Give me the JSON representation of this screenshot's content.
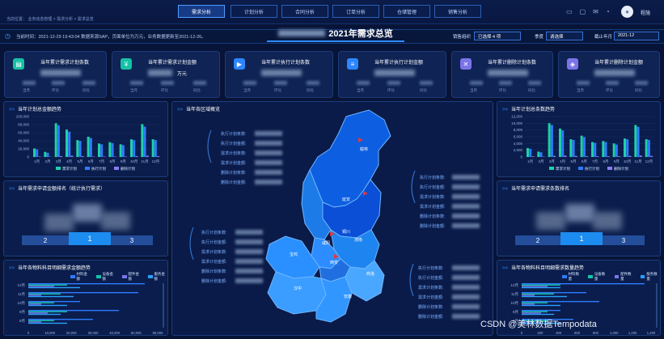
{
  "nav": {
    "tabs": [
      "需求分析",
      "计划分析",
      "合同分析",
      "订单分析",
      "仓储管理",
      "销售分析"
    ],
    "active": 0
  },
  "breadcrumb": "当前位置： 业务动态管理  >  需求分析  >  需求总览",
  "user": {
    "name": "程施"
  },
  "info": {
    "text": "当前时间：2021-12-29 19:43:04  数据来源SAP，页面单位为万元，业务数据更新至2021-12-26。"
  },
  "title": "2021年需求总览",
  "filters": {
    "org_label": "销售组织",
    "org_value": "已选择 4 项",
    "season_label": "季度",
    "season_value": "请选择",
    "month_label": "截止年月",
    "month_value": "2021-12"
  },
  "cards": [
    {
      "title": "当年累计需求计划条数",
      "unit": "",
      "color": "#16c2a6",
      "icon": "chat-icon"
    },
    {
      "title": "当年累计需求计划金额",
      "unit": "万元",
      "color": "#16c2a6",
      "icon": "money-icon"
    },
    {
      "title": "当年累计执行计划条数",
      "unit": "",
      "color": "#2d86ff",
      "icon": "play-icon"
    },
    {
      "title": "当年累计执行计划金额",
      "unit": "",
      "color": "#2d86ff",
      "icon": "coins-icon"
    },
    {
      "title": "当年累计删除计划条数",
      "unit": "",
      "color": "#7b74e8",
      "icon": "x-icon"
    },
    {
      "title": "当年累计删除计划金额",
      "unit": "",
      "color": "#7b74e8",
      "icon": "tag-icon"
    }
  ],
  "card_subs": [
    "当月",
    "环比",
    "同比"
  ],
  "panels": {
    "left1": "当年计划总金额趋势",
    "left2": "当年需求申请金额排名（统计执行需求）",
    "left3": "当年各物料科目明细需求金额趋势",
    "center": "当年各区域概览",
    "right1": "当年计划总条数趋势",
    "right2": "当年需求申请需求条数排名",
    "right3": "当年各物料科目明细需求数量趋势"
  },
  "legend": {
    "demand": "需求计划",
    "exec": "执行计划",
    "delete": "删除计划"
  },
  "chart_data": [
    {
      "type": "bar",
      "title": "当年计划总金额趋势",
      "categories": [
        "1月",
        "2月",
        "3月",
        "4月",
        "5月",
        "6月",
        "7月",
        "8月",
        "9月",
        "10月",
        "11月",
        "12月"
      ],
      "series": [
        {
          "name": "需求计划",
          "values": [
            20000,
            12000,
            80000,
            65000,
            40000,
            48000,
            32000,
            35000,
            30000,
            42000,
            78000,
            42000
          ]
        },
        {
          "name": "执行计划",
          "values": [
            18000,
            10000,
            75000,
            60000,
            38000,
            45000,
            30000,
            33000,
            28000,
            40000,
            72000,
            40000
          ]
        },
        {
          "name": "删除计划",
          "values": [
            1000,
            500,
            2000,
            3000,
            2000,
            1000,
            1000,
            1000,
            1000,
            2000,
            3000,
            2000
          ]
        }
      ],
      "yticks": [
        "100,000",
        "80,000",
        "60,000",
        "40,000",
        "20,000",
        "0"
      ]
    },
    {
      "type": "bar",
      "title": "当年计划总条数趋势",
      "categories": [
        "1月",
        "2月",
        "3月",
        "4月",
        "5月",
        "6月",
        "7月",
        "8月",
        "9月",
        "10月",
        "11月",
        "12月"
      ],
      "series": [
        {
          "name": "需求计划",
          "values": [
            2500,
            1500,
            9500,
            8000,
            5000,
            6000,
            4200,
            4500,
            3800,
            5200,
            9000,
            5000
          ]
        },
        {
          "name": "执行计划",
          "values": [
            2300,
            1300,
            9000,
            7500,
            4800,
            5600,
            4000,
            4200,
            3500,
            5000,
            8500,
            4800
          ]
        },
        {
          "name": "删除计划",
          "values": [
            200,
            100,
            300,
            400,
            300,
            200,
            200,
            200,
            200,
            300,
            400,
            300
          ]
        }
      ],
      "yticks": [
        "12,000",
        "10,000",
        "8,000",
        "6,000",
        "4,000",
        "2,000",
        "0"
      ]
    },
    {
      "type": "bar",
      "title": "当年各物料科目明细需求金额趋势",
      "orientation": "horizontal",
      "categories": [
        "12月",
        "11月",
        "10月",
        "9月",
        "8月"
      ],
      "legend": [
        "材料金额",
        "设备金额",
        "配件金额",
        "服务金额"
      ],
      "xticks": [
        "0",
        "10,000",
        "20,000",
        "30,000",
        "40,000",
        "50,000",
        "60,000"
      ]
    },
    {
      "type": "bar",
      "title": "当年各物料科目明细需求数量趋势",
      "orientation": "horizontal",
      "categories": [
        "12月",
        "11月",
        "10月",
        "9月",
        "8月"
      ],
      "legend": [
        "材料数量",
        "设备数量",
        "配件数量",
        "服务数量"
      ],
      "xticks": [
        "0",
        "200",
        "400",
        "600",
        "800",
        "1,000",
        "1,200",
        "1,400"
      ]
    }
  ],
  "podium": [
    "2",
    "1",
    "3"
  ],
  "map": {
    "left_labels": [
      "执行计划条数:",
      "执行计划金额:",
      "需求计划条数:",
      "需求计划金额:",
      "删除计划条数:",
      "删除计划金额:"
    ],
    "places": [
      "榆林",
      "延安",
      "铜川",
      "渭南",
      "咸阳",
      "宝鸡",
      "西安",
      "汉中",
      "安康",
      "商洛"
    ]
  },
  "watermark": "CSDN @美林数据Tempodata"
}
